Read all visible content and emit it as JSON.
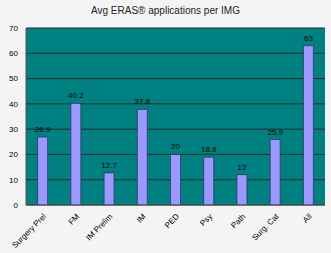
{
  "chart_data": {
    "type": "bar",
    "title": "Avg ERAS® applications per IMG",
    "categories": [
      "Surgery Prel",
      "FM",
      "IM Prelim",
      "IM",
      "PED",
      "Psy",
      "Path",
      "Surg. Cat",
      "All"
    ],
    "values": [
      26.9,
      40.2,
      12.7,
      37.8,
      20,
      18.9,
      12,
      25.9,
      63
    ],
    "color": "#9999ff",
    "ylim": [
      0,
      70
    ],
    "yticks": [
      0,
      10,
      20,
      30,
      40,
      50,
      60,
      70
    ],
    "grid": true,
    "data_labels": true
  }
}
